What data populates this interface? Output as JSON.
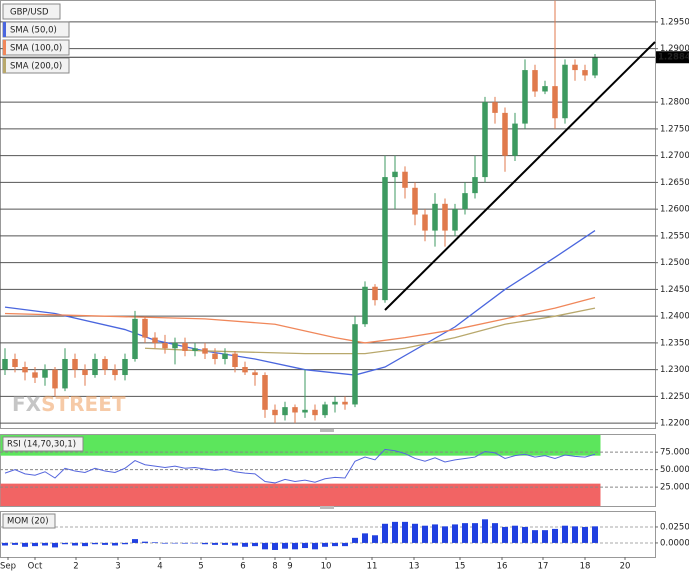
{
  "chart_data": [
    {
      "type": "candlestick",
      "symbol": "GBP/USD",
      "open": [
        1.23,
        1.232,
        1.2305,
        1.2295,
        1.2285,
        1.23,
        1.2265,
        1.232,
        1.23,
        1.229,
        1.232,
        1.23,
        1.229,
        1.232,
        1.2395,
        1.236,
        1.235,
        1.234,
        1.235,
        1.2335,
        1.234,
        1.233,
        1.232,
        1.233,
        1.2305,
        1.2295,
        1.229,
        1.2225,
        1.2215,
        1.223,
        1.222,
        1.2225,
        1.2215,
        1.2235,
        1.224,
        1.2235,
        1.2385,
        1.2455,
        1.243,
        1.266,
        1.267,
        1.264,
        1.259,
        1.256,
        1.261,
        1.256,
        1.26,
        1.263,
        1.266,
        1.28,
        1.278,
        1.27,
        1.276,
        1.286,
        1.282,
        1.283,
        1.277,
        1.287,
        1.286,
        1.285
      ],
      "high": [
        1.234,
        1.233,
        1.2315,
        1.2305,
        1.231,
        1.2305,
        1.234,
        1.233,
        1.231,
        1.233,
        1.2325,
        1.231,
        1.233,
        1.241,
        1.24,
        1.237,
        1.2365,
        1.236,
        1.236,
        1.235,
        1.235,
        1.234,
        1.234,
        1.2335,
        1.2315,
        1.23,
        1.2295,
        1.2235,
        1.224,
        1.2235,
        1.23,
        1.2235,
        1.224,
        1.225,
        1.225,
        1.24,
        1.2465,
        1.246,
        1.27,
        1.27,
        1.268,
        1.265,
        1.26,
        1.263,
        1.262,
        1.261,
        1.265,
        1.27,
        1.281,
        1.281,
        1.279,
        1.278,
        1.288,
        1.287,
        1.284,
        1.299,
        1.288,
        1.288,
        1.287,
        1.289
      ],
      "low": [
        1.229,
        1.2295,
        1.228,
        1.2275,
        1.227,
        1.225,
        1.226,
        1.2285,
        1.227,
        1.2285,
        1.229,
        1.228,
        1.228,
        1.2315,
        1.235,
        1.234,
        1.233,
        1.231,
        1.2325,
        1.2325,
        1.232,
        1.231,
        1.231,
        1.2295,
        1.229,
        1.227,
        1.221,
        1.22,
        1.2205,
        1.22,
        1.221,
        1.2205,
        1.221,
        1.222,
        1.2225,
        1.223,
        1.238,
        1.242,
        1.2425,
        1.26,
        1.262,
        1.257,
        1.254,
        1.253,
        1.253,
        1.255,
        1.259,
        1.262,
        1.265,
        1.276,
        1.267,
        1.269,
        1.275,
        1.281,
        1.2815,
        1.275,
        1.276,
        1.284,
        1.284,
        1.2845
      ],
      "close": [
        1.232,
        1.2305,
        1.2295,
        1.2285,
        1.23,
        1.2265,
        1.232,
        1.23,
        1.229,
        1.232,
        1.23,
        1.229,
        1.232,
        1.2395,
        1.236,
        1.235,
        1.234,
        1.235,
        1.2335,
        1.234,
        1.233,
        1.232,
        1.233,
        1.2305,
        1.2295,
        1.229,
        1.2225,
        1.2215,
        1.223,
        1.222,
        1.2225,
        1.2215,
        1.2235,
        1.224,
        1.2235,
        1.2385,
        1.2455,
        1.243,
        1.266,
        1.267,
        1.264,
        1.259,
        1.256,
        1.261,
        1.256,
        1.26,
        1.263,
        1.266,
        1.28,
        1.278,
        1.27,
        1.276,
        1.286,
        1.282,
        1.283,
        1.277,
        1.287,
        1.286,
        1.285,
        1.2884
      ],
      "up_color": "#3d9a60",
      "down_color": "#e07a4c",
      "xlim": [
        -0.5,
        65
      ],
      "xticks": [
        {
          "value": 0.3,
          "label": "Sep"
        },
        {
          "value": 3,
          "label": "Oct"
        },
        {
          "value": 7.1,
          "label": "2"
        },
        {
          "value": 11.3,
          "label": "3"
        },
        {
          "value": 15.5,
          "label": "4"
        },
        {
          "value": 19.6,
          "label": "5"
        },
        {
          "value": 23.8,
          "label": "6"
        },
        {
          "value": 27,
          "label": "8"
        },
        {
          "value": 28.5,
          "label": "9"
        },
        {
          "value": 32.1,
          "label": "10"
        },
        {
          "value": 36.7,
          "label": "11"
        },
        {
          "value": 40.9,
          "label": "13"
        },
        {
          "value": 45.5,
          "label": "15"
        },
        {
          "value": 49.7,
          "label": "16"
        },
        {
          "value": 53.8,
          "label": "17"
        },
        {
          "value": 58,
          "label": "18"
        },
        {
          "value": 62,
          "label": "20"
        }
      ],
      "ylim": [
        1.2191,
        1.2991
      ],
      "yticks": [
        {
          "value": 1.22,
          "label": "1.2200"
        },
        {
          "value": 1.225,
          "label": "1.2250"
        },
        {
          "value": 1.23,
          "label": "1.2300"
        },
        {
          "value": 1.235,
          "label": "1.2350"
        },
        {
          "value": 1.24,
          "label": "1.2400"
        },
        {
          "value": 1.245,
          "label": "1.2450"
        },
        {
          "value": 1.25,
          "label": "1.2500"
        },
        {
          "value": 1.255,
          "label": "1.2550"
        },
        {
          "value": 1.26,
          "label": "1.2600"
        },
        {
          "value": 1.265,
          "label": "1.2650"
        },
        {
          "value": 1.27,
          "label": "1.2700"
        },
        {
          "value": 1.275,
          "label": "1.2750"
        },
        {
          "value": 1.28,
          "label": "1.2800"
        },
        {
          "value": 1.29,
          "label": "1.2900"
        },
        {
          "value": 1.295,
          "label": "1.2950"
        }
      ],
      "grid": true,
      "last_price": {
        "value": 1.2884,
        "label": "1.28840"
      },
      "series": [
        {
          "name": "SMA (50,0)",
          "color": "#4a66de",
          "x": [
            0,
            5,
            12,
            15,
            20,
            25,
            30,
            35,
            38,
            45,
            50,
            55,
            59
          ],
          "values": [
            1.2417,
            1.2405,
            1.2375,
            1.2355,
            1.2335,
            1.232,
            1.23,
            1.229,
            1.2305,
            1.238,
            1.245,
            1.251,
            1.256
          ]
        },
        {
          "name": "SMA (100,0)",
          "color": "#f0875a",
          "x": [
            0,
            10,
            20,
            27,
            33,
            36,
            40,
            45,
            50,
            55,
            59
          ],
          "values": [
            1.2405,
            1.24,
            1.2395,
            1.2385,
            1.236,
            1.235,
            1.236,
            1.2375,
            1.2395,
            1.2415,
            1.2435
          ]
        },
        {
          "name": "SMA (200,0)",
          "color": "#b8a86c",
          "x": [
            14,
            20,
            30,
            36,
            40,
            45,
            50,
            55,
            59
          ],
          "values": [
            1.234,
            1.2335,
            1.233,
            1.233,
            1.234,
            1.236,
            1.2385,
            1.24,
            1.2415
          ]
        }
      ],
      "watermark": [
        "FX",
        "STREET"
      ]
    },
    {
      "type": "line",
      "title": "RSI (14,70,30,1)",
      "color": "#5566dd",
      "values": [
        45,
        50,
        44,
        42,
        47,
        38,
        52,
        48,
        46,
        52,
        48,
        46,
        52,
        63,
        57,
        55,
        53,
        55,
        52,
        53,
        51,
        49,
        51,
        47,
        45,
        44,
        33,
        31,
        36,
        33,
        35,
        32,
        37,
        39,
        38,
        62,
        68,
        64,
        79,
        77,
        73,
        66,
        62,
        67,
        61,
        64,
        66,
        68,
        76,
        74,
        66,
        70,
        72,
        68,
        70,
        66,
        71,
        69,
        68,
        72
      ],
      "levels": {
        "upper": 70,
        "lower": 30,
        "upper_color": "#5ce65c",
        "lower_color": "#f26464"
      },
      "ylim": [
        -2,
        101
      ],
      "yticks": [
        {
          "value": 25,
          "label": "25.0000"
        },
        {
          "value": 50,
          "label": "50.0000"
        },
        {
          "value": 75,
          "label": "75.0000"
        }
      ]
    },
    {
      "type": "bar",
      "title": "MOM (20)",
      "color": "#2140e0",
      "values": [
        -0.004,
        -0.003,
        -0.006,
        -0.005,
        -0.004,
        -0.007,
        -0.002,
        -0.004,
        -0.005,
        -0.002,
        -0.003,
        -0.004,
        -0.002,
        0.006,
        0.002,
        0.001,
        -0.001,
        0,
        -0.001,
        0,
        -0.002,
        -0.003,
        -0.003,
        -0.004,
        -0.006,
        -0.005,
        -0.01,
        -0.011,
        -0.009,
        -0.01,
        -0.008,
        -0.01,
        -0.006,
        -0.005,
        -0.005,
        0.008,
        0.015,
        0.012,
        0.03,
        0.033,
        0.033,
        0.03,
        0.027,
        0.029,
        0.026,
        0.029,
        0.031,
        0.031,
        0.037,
        0.031,
        0.025,
        0.027,
        0.025,
        0.02,
        0.02,
        0.022,
        0.027,
        0.026,
        0.025,
        0.026
      ],
      "ylim": [
        -0.022,
        0.05
      ],
      "yticks": [
        {
          "value": 0,
          "label": "0.0000"
        },
        {
          "value": 0.025,
          "label": "0.0250"
        }
      ]
    }
  ]
}
